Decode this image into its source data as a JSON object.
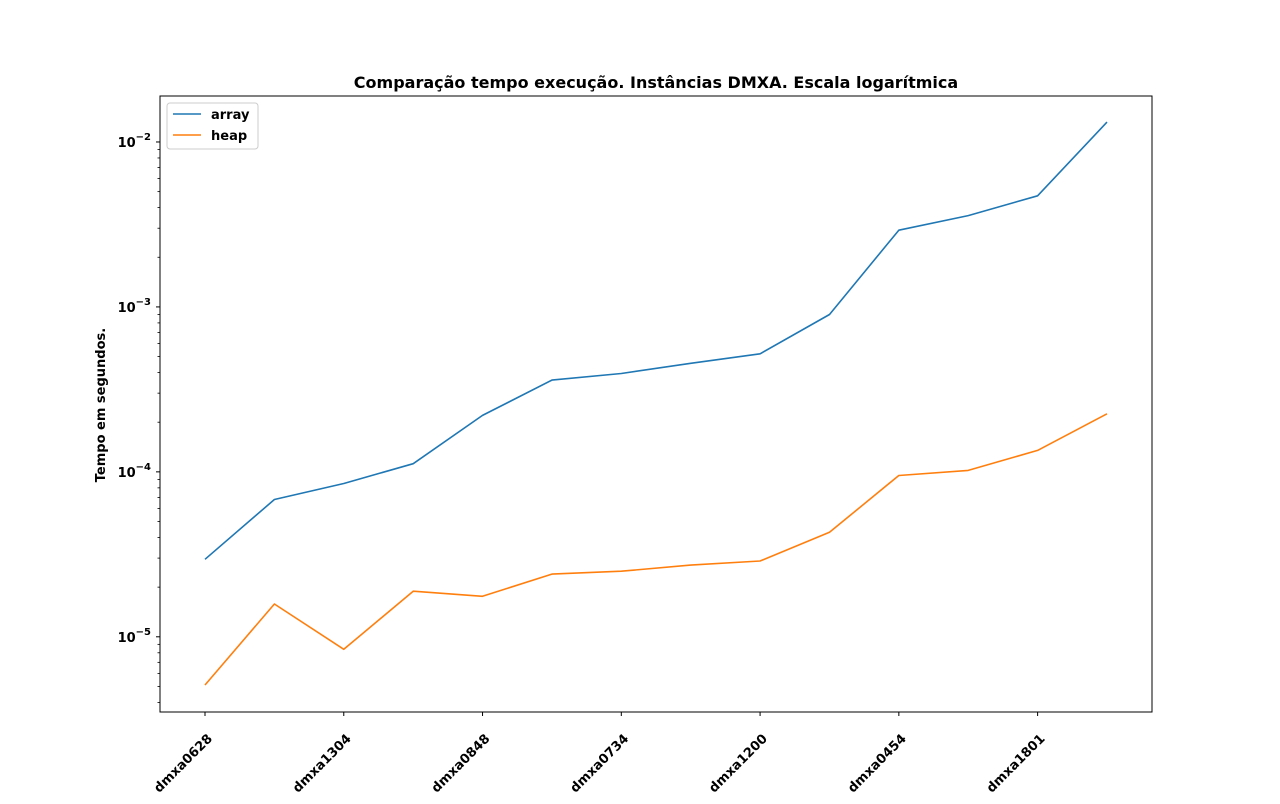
{
  "chart_data": {
    "type": "line",
    "title": "Comparação tempo execução. Instâncias DMXA. Escala logarítmica",
    "xlabel": "",
    "ylabel": "Tempo em segundos.",
    "y_scale": "log",
    "ylim": [
      3.5e-06,
      0.019
    ],
    "grid": false,
    "legend_position": "top-left",
    "categories": [
      "dmxa0628",
      "",
      "dmxa1304",
      "",
      "dmxa0848",
      "",
      "dmxa0734",
      "",
      "dmxa1200",
      "",
      "dmxa0454",
      "",
      "dmxa1801",
      ""
    ],
    "x_tick_labels": [
      "dmxa0628",
      "dmxa1304",
      "dmxa0848",
      "dmxa0734",
      "dmxa1200",
      "dmxa0454",
      "dmxa1801"
    ],
    "y_ticks": [
      {
        "value": 1e-05,
        "base": "10",
        "exp": "−5"
      },
      {
        "value": 0.0001,
        "base": "10",
        "exp": "−4"
      },
      {
        "value": 0.001,
        "base": "10",
        "exp": "−3"
      },
      {
        "value": 0.01,
        "base": "10",
        "exp": "−2"
      }
    ],
    "series": [
      {
        "name": "array",
        "color": "#1f77b4",
        "values": [
          2.95e-05,
          6.8e-05,
          8.5e-05,
          0.000112,
          0.00022,
          0.00036,
          0.000395,
          0.000455,
          0.00052,
          0.0009,
          0.00292,
          0.00358,
          0.00472,
          0.0132
        ]
      },
      {
        "name": "heap",
        "color": "#ff7f0e",
        "values": [
          5.1e-06,
          1.58e-05,
          8.4e-06,
          1.89e-05,
          1.76e-05,
          2.4e-05,
          2.5e-05,
          2.72e-05,
          2.88e-05,
          4.3e-05,
          9.5e-05,
          0.000102,
          0.000135,
          0.000225
        ]
      }
    ]
  }
}
